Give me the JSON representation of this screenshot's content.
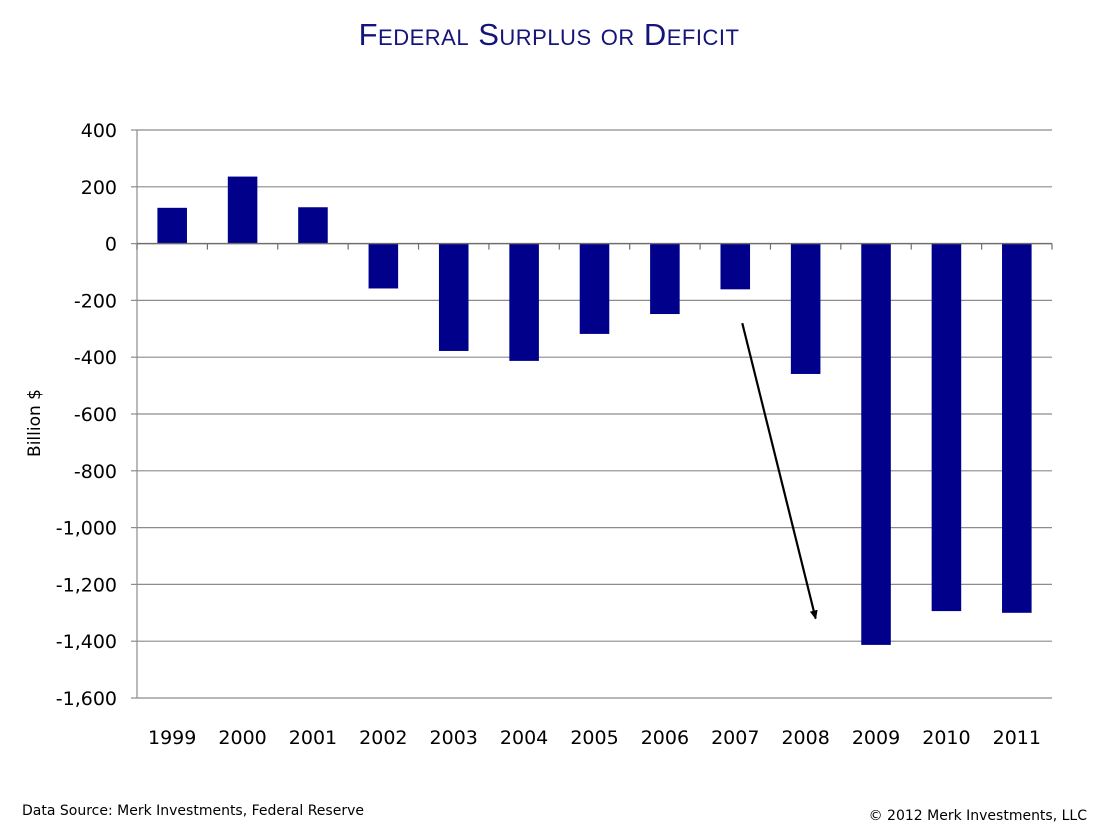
{
  "chart_data": {
    "type": "bar",
    "title": "Federal Surplus or Deficit",
    "xlabel": "",
    "ylabel": "Billion $",
    "categories": [
      "1999",
      "2000",
      "2001",
      "2002",
      "2003",
      "2004",
      "2005",
      "2006",
      "2007",
      "2008",
      "2009",
      "2010",
      "2011"
    ],
    "values": [
      126,
      236,
      128,
      -158,
      -378,
      -413,
      -318,
      -248,
      -161,
      -459,
      -1413,
      -1294,
      -1300
    ],
    "ylim": [
      -1600,
      400
    ],
    "yticks": [
      400,
      200,
      0,
      -200,
      -400,
      -600,
      -800,
      -1000,
      -1200,
      -1400,
      -1600
    ],
    "ytick_labels": [
      "400",
      "200",
      "0",
      "-200",
      "-400",
      "-600",
      "-800",
      "-1,000",
      "-1,200",
      "-1,400",
      "-1,600"
    ],
    "grid": true,
    "annotations": [
      {
        "type": "arrow",
        "from": {
          "x": "2007",
          "y": -280
        },
        "to": {
          "x": "2008",
          "y": -1320
        }
      }
    ]
  },
  "colors": {
    "bar": "#00008b",
    "title": "#14147a",
    "grid": "#8c8c8c",
    "arrow": "#000000"
  },
  "footer": {
    "source": "Data Source: Merk Investments, Federal Reserve",
    "copyright": "© 2012 Merk Investments, LLC"
  }
}
